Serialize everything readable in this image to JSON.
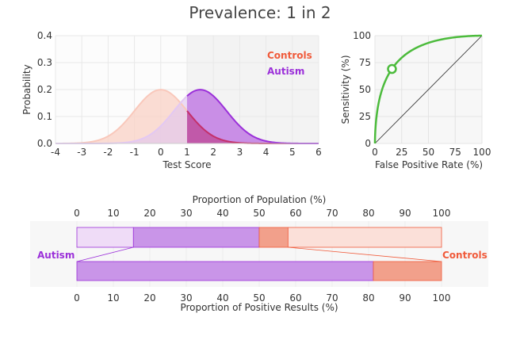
{
  "title": "Prevalence: 1 in 2",
  "colors": {
    "controls": "#f05a3a",
    "autism": "#9b30d9",
    "roc": "#4cbb3c"
  },
  "chart_data": [
    {
      "type": "area",
      "xlabel": "Test Score",
      "ylabel": "Probability",
      "xlim": [
        -4,
        6
      ],
      "ylim": [
        0,
        0.4
      ],
      "xticks": [
        "-4",
        "-3",
        "-2",
        "-1",
        "0",
        "1",
        "2",
        "3",
        "4",
        "5",
        "6"
      ],
      "yticks": [
        "0.0",
        "0.1",
        "0.2",
        "0.3",
        "0.4"
      ],
      "grid": true,
      "legend_placement": "top-right",
      "threshold": 1,
      "series": [
        {
          "name": "Controls",
          "distribution": "normal",
          "mean": 0,
          "sd": 1,
          "weight": 0.5
        },
        {
          "name": "Autism",
          "distribution": "normal",
          "mean": 1.5,
          "sd": 1,
          "weight": 0.5
        }
      ]
    },
    {
      "type": "line",
      "xlabel": "False Positive Rate (%)",
      "ylabel": "Sensitivity (%)",
      "xlim": [
        0,
        100
      ],
      "ylim": [
        0,
        100
      ],
      "xticks": [
        "0",
        "25",
        "50",
        "75",
        "100"
      ],
      "yticks": [
        "0",
        "25",
        "50",
        "75",
        "100"
      ],
      "grid": true,
      "operating_point": {
        "fpr": 15.9,
        "sensitivity": 69.1
      }
    },
    {
      "type": "bar",
      "orientation": "horizontal-stacked",
      "legend": {
        "left": "Autism",
        "right": "Controls"
      },
      "top_axis_label": "Proportion of Population (%)",
      "bottom_axis_label": "Proportion of Positive Results (%)",
      "xticks": [
        "0",
        "10",
        "20",
        "30",
        "40",
        "50",
        "60",
        "70",
        "80",
        "90",
        "100"
      ],
      "population_segments": [
        {
          "group": "Autism",
          "kind": "false negative",
          "value": 15.5
        },
        {
          "group": "Autism",
          "kind": "true positive",
          "value": 34.5
        },
        {
          "group": "Controls",
          "kind": "false positive",
          "value": 7.9
        },
        {
          "group": "Controls",
          "kind": "true negative",
          "value": 42.1
        }
      ],
      "positive_segments": [
        {
          "group": "Autism",
          "value": 81.3
        },
        {
          "group": "Controls",
          "value": 18.7
        }
      ]
    }
  ]
}
